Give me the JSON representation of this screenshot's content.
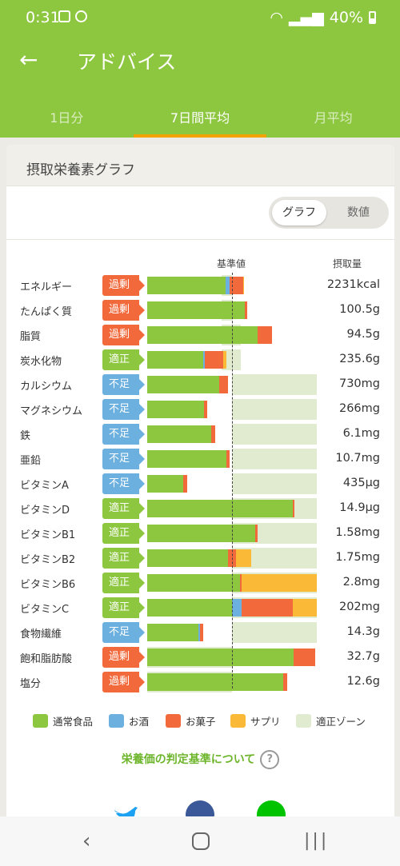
{
  "status": {
    "time": "0:31",
    "battery": "40%"
  },
  "appbar": {
    "title": "アドバイス"
  },
  "tabs": [
    "1日分",
    "7日間平均",
    "月平均"
  ],
  "card": {
    "title": "摂取栄養素グラフ"
  },
  "view_toggle": {
    "graph": "グラフ",
    "numbers": "数値"
  },
  "headers": {
    "reference": "基準値",
    "intake": "摂取量"
  },
  "colors": {
    "food": "#8dc63f",
    "alcohol": "#6cb0df",
    "snacks": "#f26a3c",
    "supplement": "#fbb938",
    "zone": "#e0ebcf",
    "over": "#f26a3c",
    "ok": "#8dc63f",
    "under": "#6cb0df"
  },
  "chart_data": {
    "type": "bar",
    "stacked": true,
    "reference_ratio": 1.0,
    "series_names": [
      "通常食品",
      "お酒",
      "お菓子",
      "サプリ"
    ],
    "rows": [
      {
        "name": "エネルギー",
        "badge": "過剰",
        "status": "over",
        "zone": [
          0.88,
          1.0
        ],
        "ratio": {
          "food": 0.92,
          "alcohol": 0.05,
          "snacks": 0.16,
          "supplement": 0.01
        },
        "value": "2231kcal"
      },
      {
        "name": "たんぱく質",
        "badge": "過剰",
        "status": "over",
        "zone": [
          0.88,
          1.0
        ],
        "ratio": {
          "food": 1.15,
          "alcohol": 0,
          "snacks": 0.03,
          "supplement": 0
        },
        "value": "100.5g"
      },
      {
        "name": "脂質",
        "badge": "過剰",
        "status": "over",
        "zone": [
          0.88,
          1.1
        ],
        "ratio": {
          "food": 1.3,
          "alcohol": 0,
          "snacks": 0.17,
          "supplement": 0
        },
        "value": "94.5g"
      },
      {
        "name": "炭水化物",
        "badge": "適正",
        "status": "ok",
        "zone": [
          0.88,
          1.1
        ],
        "ratio": {
          "food": 0.66,
          "alcohol": 0.02,
          "snacks": 0.22,
          "supplement": 0.03
        },
        "value": "235.6g"
      },
      {
        "name": "カルシウム",
        "badge": "不足",
        "status": "under",
        "zone": [
          1.0,
          2.0
        ],
        "ratio": {
          "food": 0.85,
          "alcohol": 0,
          "snacks": 0.1,
          "supplement": 0
        },
        "value": "730mg"
      },
      {
        "name": "マグネシウム",
        "badge": "不足",
        "status": "under",
        "zone": [
          1.0,
          2.0
        ],
        "ratio": {
          "food": 0.67,
          "alcohol": 0,
          "snacks": 0.04,
          "supplement": 0
        },
        "value": "266mg"
      },
      {
        "name": "鉄",
        "badge": "不足",
        "status": "under",
        "zone": [
          1.0,
          2.0
        ],
        "ratio": {
          "food": 0.75,
          "alcohol": 0,
          "snacks": 0.05,
          "supplement": 0
        },
        "value": "6.1mg"
      },
      {
        "name": "亜鉛",
        "badge": "不足",
        "status": "under",
        "zone": [
          1.0,
          2.0
        ],
        "ratio": {
          "food": 0.93,
          "alcohol": 0,
          "snacks": 0.04,
          "supplement": 0
        },
        "value": "10.7mg"
      },
      {
        "name": "ビタミンA",
        "badge": "不足",
        "status": "under",
        "zone": [
          1.0,
          2.0
        ],
        "ratio": {
          "food": 0.42,
          "alcohol": 0,
          "snacks": 0.05,
          "supplement": 0
        },
        "value": "435μg"
      },
      {
        "name": "ビタミンD",
        "badge": "適正",
        "status": "ok",
        "zone": [
          1.0,
          2.0
        ],
        "ratio": {
          "food": 1.72,
          "alcohol": 0,
          "snacks": 0.02,
          "supplement": 0
        },
        "value": "14.9μg"
      },
      {
        "name": "ビタミンB1",
        "badge": "適正",
        "status": "ok",
        "zone": [
          1.0,
          2.0
        ],
        "ratio": {
          "food": 1.27,
          "alcohol": 0,
          "snacks": 0.03,
          "supplement": 0
        },
        "value": "1.58mg"
      },
      {
        "name": "ビタミンB2",
        "badge": "適正",
        "status": "ok",
        "zone": [
          1.0,
          2.0
        ],
        "ratio": {
          "food": 0.95,
          "alcohol": 0,
          "snacks": 0.1,
          "supplement": 0.18
        },
        "value": "1.75mg"
      },
      {
        "name": "ビタミンB6",
        "badge": "適正",
        "status": "ok",
        "zone": [
          1.0,
          2.0
        ],
        "ratio": {
          "food": 1.09,
          "alcohol": 0,
          "snacks": 0.02,
          "supplement": 0.89
        },
        "value": "2.8mg"
      },
      {
        "name": "ビタミンC",
        "badge": "適正",
        "status": "ok",
        "zone": [
          1.0,
          2.0
        ],
        "ratio": {
          "food": 1.0,
          "alcohol": 0.11,
          "snacks": 0.61,
          "supplement": 0.28
        },
        "value": "202mg"
      },
      {
        "name": "食物繊維",
        "badge": "不足",
        "status": "under",
        "zone": [
          1.0,
          2.0
        ],
        "ratio": {
          "food": 0.6,
          "alcohol": 0.02,
          "snacks": 0.04,
          "supplement": 0
        },
        "value": "14.3g"
      },
      {
        "name": "飽和脂肪酸",
        "badge": "過剰",
        "status": "over",
        "zone": [
          0,
          1.0
        ],
        "ratio": {
          "food": 1.73,
          "alcohol": 0,
          "snacks": 0.25,
          "supplement": 0
        },
        "value": "32.7g"
      },
      {
        "name": "塩分",
        "badge": "過剰",
        "status": "over",
        "zone": [
          0,
          1.0
        ],
        "ratio": {
          "food": 1.6,
          "alcohol": 0,
          "snacks": 0.05,
          "supplement": 0
        },
        "value": "12.6g"
      }
    ]
  },
  "legend": {
    "food": "通常食品",
    "alcohol": "お酒",
    "snacks": "お菓子",
    "supplement": "サプリ",
    "zone": "適正ゾーン"
  },
  "judge_link": "栄養価の判定基準について",
  "judge_help": "?",
  "social": [
    "twitter-icon",
    "facebook-icon",
    "line-icon"
  ]
}
